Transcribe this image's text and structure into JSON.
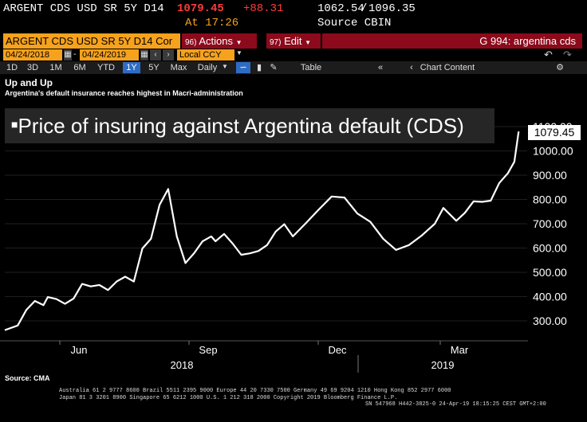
{
  "quote": {
    "security": "ARGENT CDS USD SR 5Y D14",
    "last": "1079.45",
    "change": "+88.31",
    "low": "1062.54",
    "separator": "/",
    "high": "1096.35",
    "at_label": "At 17:26",
    "source": "Source CBIN"
  },
  "command": {
    "ticker_field": "ARGENT CDS USD SR 5Y D14 Cor",
    "actions_num": "96)",
    "actions_label": "Actions",
    "edit_num": "97)",
    "edit_label": "Edit",
    "gcode": "G 994: argentina cds"
  },
  "dates": {
    "start": "04/24/2018",
    "end": "04/24/2019",
    "currency": "Local CCY"
  },
  "periods": [
    "1D",
    "3D",
    "1M",
    "6M",
    "YTD",
    "1Y",
    "5Y",
    "Max"
  ],
  "selected_period": "1Y",
  "frequency": "Daily",
  "toolbar": {
    "table": "Table",
    "chart_content": "Chart Content"
  },
  "chart_data": {
    "type": "line",
    "title": "Up and Up",
    "subtitle": "Argentina's default insurance reaches highest in Macri-administration",
    "annotation": "Price of insuring against Argentina default (CDS)",
    "last_value_label": "1079.45",
    "x_labels": [
      "Jun",
      "Sep",
      "Dec",
      "Mar"
    ],
    "x_years": [
      "2018",
      "2019"
    ],
    "y_ticks": [
      "300.00",
      "400.00",
      "500.00",
      "600.00",
      "700.00",
      "800.00",
      "900.00",
      "1000.00",
      "1100.00"
    ],
    "ylim": [
      215,
      1130
    ],
    "x_range_months": [
      0,
      12
    ],
    "series": [
      {
        "name": "ARGENT CDS USD SR 5Y D14",
        "x": [
          0.0,
          0.3,
          0.5,
          0.7,
          0.9,
          1.0,
          1.2,
          1.4,
          1.6,
          1.8,
          2.0,
          2.2,
          2.4,
          2.6,
          2.8,
          3.0,
          3.2,
          3.4,
          3.6,
          3.8,
          4.0,
          4.2,
          4.4,
          4.6,
          4.8,
          4.9,
          5.1,
          5.3,
          5.5,
          5.7,
          5.9,
          6.1,
          6.3,
          6.5,
          6.7,
          7.0,
          7.3,
          7.6,
          7.9,
          8.2,
          8.5,
          8.8,
          9.1,
          9.4,
          9.7,
          10.0,
          10.2,
          10.5,
          10.7,
          10.9,
          11.1,
          11.3,
          11.5,
          11.7,
          11.85,
          11.95
        ],
        "values": [
          262,
          281,
          345,
          382,
          365,
          398,
          390,
          370,
          392,
          452,
          442,
          448,
          427,
          462,
          482,
          462,
          598,
          638,
          778,
          843,
          648,
          538,
          578,
          628,
          648,
          628,
          658,
          618,
          572,
          578,
          588,
          612,
          668,
          698,
          648,
          702,
          758,
          812,
          808,
          742,
          708,
          638,
          592,
          612,
          652,
          700,
          765,
          712,
          745,
          792,
          790,
          795,
          868,
          908,
          955,
          1080
        ]
      }
    ]
  },
  "source": "Source: CMA",
  "footer": {
    "line1": "Australia 61 2 9777 8600 Brazil 5511 2395 9000 Europe 44 20 7330 7500 Germany 49 69 9204 1210 Hong Kong 852 2977 6000",
    "line2": "Japan 81 3 3201 8900          Singapore 65 6212 1000          U.S. 1 212 318 2000          Copyright 2019 Bloomberg Finance L.P.",
    "line3": "SN 547968 H442-3825-0 24-Apr-19 18:15:25 CEST GMT+2:00"
  },
  "colors": {
    "accent_orange": "#f7a21c",
    "menu_red": "#8c0a1b",
    "change_red": "#ff3b3b",
    "selected_blue": "#2e6cc4",
    "line": "#ffffff"
  }
}
